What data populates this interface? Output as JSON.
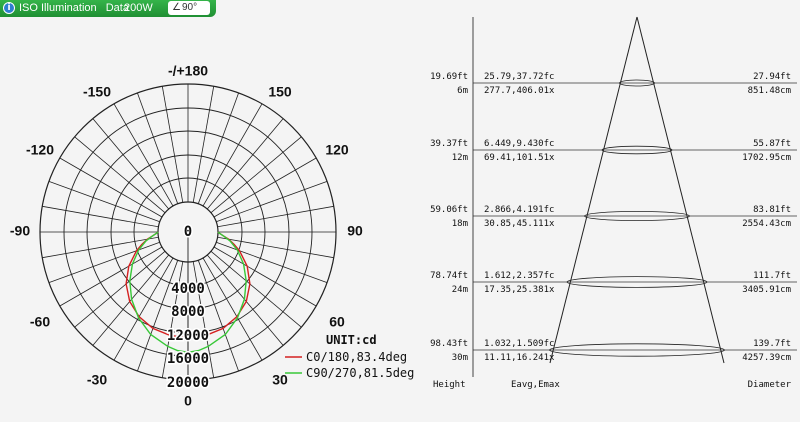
{
  "header": {
    "info_icon": "info-icon",
    "title": "ISO Illumination",
    "subtitle": "Data",
    "power": "200W",
    "angle_icon": "angle-icon",
    "angle": "90°"
  },
  "chart_data": [
    {
      "type": "polar",
      "unit_label": "UNIT:cd",
      "angle_labels": [
        "-/+180",
        "-150",
        "150",
        "-120",
        "120",
        "-90",
        "90",
        "-60",
        "60",
        "-30",
        "30",
        "0"
      ],
      "radial_labels": [
        "0",
        "4000",
        "8000",
        "12000",
        "16000",
        "20000"
      ],
      "rmax": 20000,
      "series": [
        {
          "name": "C0/180,83.4deg",
          "color": "#d42020",
          "points": [
            [
              0,
              12900
            ],
            [
              10,
              12700
            ],
            [
              20,
              12300
            ],
            [
              30,
              11500
            ],
            [
              40,
              10300
            ],
            [
              50,
              8600
            ],
            [
              60,
              6500
            ],
            [
              70,
              4200
            ],
            [
              75,
              3000
            ],
            [
              80,
              1900
            ],
            [
              84,
              900
            ],
            [
              88,
              200
            ],
            [
              90,
              0
            ]
          ]
        },
        {
          "name": "C90/270,81.5deg",
          "color": "#38c838",
          "points": [
            [
              0,
              15300
            ],
            [
              5,
              15100
            ],
            [
              10,
              14600
            ],
            [
              20,
              13400
            ],
            [
              30,
              11700
            ],
            [
              40,
              9800
            ],
            [
              50,
              7800
            ],
            [
              60,
              5800
            ],
            [
              70,
              3800
            ],
            [
              78,
              2200
            ],
            [
              84,
              900
            ],
            [
              88,
              200
            ],
            [
              90,
              0
            ]
          ]
        }
      ]
    },
    {
      "type": "table",
      "columns": [
        "Height",
        "Eavg,Emax",
        "Diameter"
      ],
      "rows": [
        {
          "height_ft": "19.69ft",
          "height_m": "6m",
          "fc": "25.79,37.72fc",
          "lx": "277.7,406.01x",
          "diam_ft": "27.94ft",
          "diam_cm": "851.48cm"
        },
        {
          "height_ft": "39.37ft",
          "height_m": "12m",
          "fc": "6.449,9.430fc",
          "lx": "69.41,101.51x",
          "diam_ft": "55.87ft",
          "diam_cm": "1702.95cm"
        },
        {
          "height_ft": "59.06ft",
          "height_m": "18m",
          "fc": "2.866,4.191fc",
          "lx": "30.85,45.111x",
          "diam_ft": "83.81ft",
          "diam_cm": "2554.43cm"
        },
        {
          "height_ft": "78.74ft",
          "height_m": "24m",
          "fc": "1.612,2.357fc",
          "lx": "17.35,25.381x",
          "diam_ft": "111.7ft",
          "diam_cm": "3405.91cm"
        },
        {
          "height_ft": "98.43ft",
          "height_m": "30m",
          "fc": "1.032,1.509fc",
          "lx": "11.11,16.241x",
          "diam_ft": "139.7ft",
          "diam_cm": "4257.39cm"
        }
      ]
    }
  ]
}
